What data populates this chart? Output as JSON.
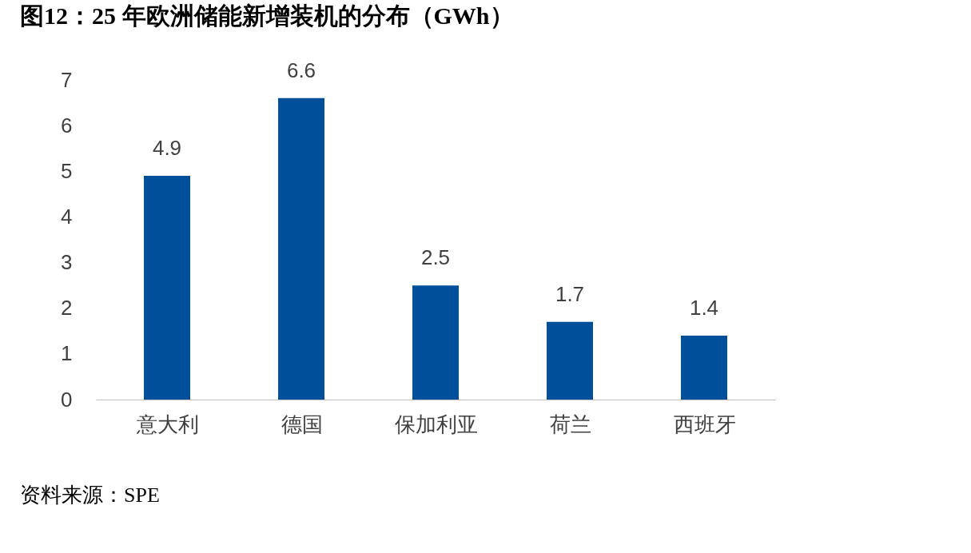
{
  "chart_data": {
    "type": "bar",
    "title": "图12：25 年欧洲储能新增装机的分布（GWh）",
    "categories": [
      "意大利",
      "德国",
      "保加利亚",
      "荷兰",
      "西班牙"
    ],
    "values": [
      4.9,
      6.6,
      2.5,
      1.7,
      1.4
    ],
    "color": "#004f9b",
    "ylim": [
      0,
      7
    ],
    "yticks": [
      0,
      1,
      2,
      3,
      4,
      5,
      6,
      7
    ],
    "grid": false,
    "data_labels": true,
    "annotations": [
      "资料来源：SPE"
    ]
  }
}
